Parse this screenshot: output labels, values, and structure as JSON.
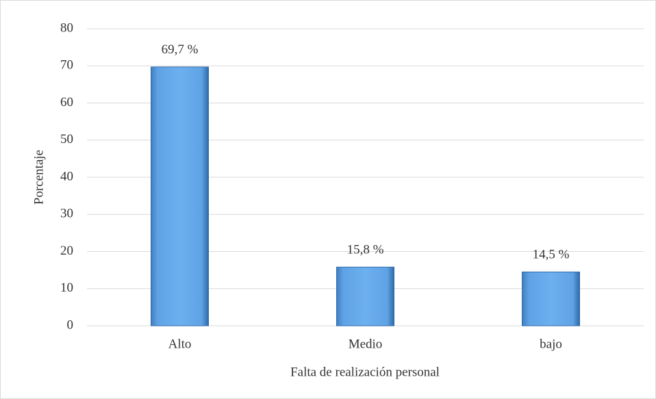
{
  "chart_data": {
    "type": "bar",
    "x_label": "Falta de realización personal",
    "y_label": "Porcentaje",
    "categories": [
      "Alto",
      "Medio",
      "bajo"
    ],
    "values": [
      69.7,
      15.8,
      14.5
    ],
    "value_labels": [
      "69,7 %",
      "15,8 %",
      "14,5 %"
    ],
    "color": "#5b9bd5",
    "ylim": [
      0,
      80
    ],
    "yticks": [
      0,
      10,
      20,
      30,
      40,
      50,
      60,
      70,
      80
    ],
    "grid": true
  }
}
